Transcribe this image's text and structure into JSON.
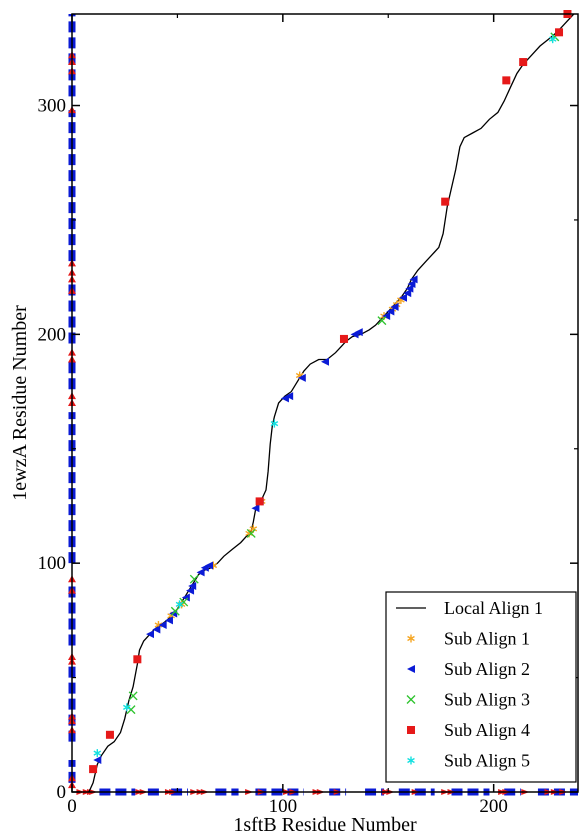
{
  "chart_data": {
    "type": "scatter",
    "title": "",
    "xlabel": "1sftB Residue Number",
    "ylabel": "1ewzA Residue Number",
    "xlim": [
      0,
      240
    ],
    "ylim": [
      0,
      340
    ],
    "x_ticks": [
      0,
      100,
      200
    ],
    "y_ticks": [
      0,
      100,
      200,
      300
    ],
    "x_tick_labels": [
      "0",
      "100",
      "200"
    ],
    "y_tick_labels": [
      "0",
      "100",
      "200",
      "300"
    ],
    "grid": false,
    "legend_position": "bottom-right",
    "series": [
      {
        "name": "Local Align 1",
        "kind": "line",
        "color": "#000000",
        "points": [
          [
            8,
            0
          ],
          [
            10,
            4
          ],
          [
            12,
            12
          ],
          [
            14,
            16
          ],
          [
            17,
            20
          ],
          [
            20,
            22
          ],
          [
            23,
            26
          ],
          [
            25,
            32
          ],
          [
            27,
            40
          ],
          [
            29,
            46
          ],
          [
            31,
            56
          ],
          [
            32,
            62
          ],
          [
            34,
            66
          ],
          [
            36,
            68
          ],
          [
            39,
            71
          ],
          [
            42,
            73
          ],
          [
            45,
            75
          ],
          [
            48,
            78
          ],
          [
            50,
            80
          ],
          [
            52,
            83
          ],
          [
            54,
            86
          ],
          [
            56,
            89
          ],
          [
            58,
            92
          ],
          [
            60,
            95
          ],
          [
            63,
            97
          ],
          [
            66,
            98
          ],
          [
            69,
            100
          ],
          [
            72,
            103
          ],
          [
            76,
            106
          ],
          [
            80,
            109
          ],
          [
            83,
            112
          ],
          [
            85,
            114
          ],
          [
            86,
            118
          ],
          [
            87,
            123
          ],
          [
            88,
            126
          ],
          [
            90,
            128
          ],
          [
            92,
            132
          ],
          [
            93,
            140
          ],
          [
            94,
            152
          ],
          [
            95,
            160
          ],
          [
            96,
            164
          ],
          [
            98,
            170
          ],
          [
            101,
            173
          ],
          [
            104,
            175
          ],
          [
            106,
            178
          ],
          [
            108,
            181
          ],
          [
            110,
            184
          ],
          [
            113,
            187
          ],
          [
            117,
            189
          ],
          [
            121,
            189
          ],
          [
            125,
            192
          ],
          [
            128,
            195
          ],
          [
            130,
            197
          ],
          [
            133,
            199
          ],
          [
            137,
            200
          ],
          [
            141,
            202
          ],
          [
            144,
            204
          ],
          [
            147,
            207
          ],
          [
            150,
            210
          ],
          [
            153,
            213
          ],
          [
            156,
            216
          ],
          [
            159,
            220
          ],
          [
            161,
            224
          ],
          [
            164,
            228
          ],
          [
            168,
            232
          ],
          [
            172,
            236
          ],
          [
            174,
            238
          ],
          [
            176,
            244
          ],
          [
            178,
            256
          ],
          [
            180,
            264
          ],
          [
            182,
            272
          ],
          [
            184,
            282
          ],
          [
            186,
            286
          ],
          [
            190,
            288
          ],
          [
            194,
            290
          ],
          [
            198,
            294
          ],
          [
            202,
            297
          ],
          [
            205,
            302
          ],
          [
            208,
            308
          ],
          [
            211,
            314
          ],
          [
            214,
            318
          ],
          [
            218,
            322
          ],
          [
            222,
            326
          ],
          [
            226,
            329
          ],
          [
            230,
            332
          ],
          [
            234,
            336
          ],
          [
            238,
            340
          ]
        ]
      },
      {
        "name": "Sub Align 1",
        "kind": "scatter",
        "marker": "asterisk",
        "color": "#f5a623",
        "points": [
          [
            41,
            73
          ],
          [
            47,
            77
          ],
          [
            52,
            82
          ],
          [
            67,
            99
          ],
          [
            84,
            113
          ],
          [
            86,
            115
          ],
          [
            90,
            127
          ],
          [
            108,
            182
          ],
          [
            148,
            208
          ],
          [
            152,
            211
          ],
          [
            154,
            213
          ],
          [
            156,
            215
          ]
        ]
      },
      {
        "name": "Sub Align 2",
        "kind": "scatter",
        "marker": "triangle-left",
        "color": "#0b1bd6",
        "points": [
          [
            12,
            14
          ],
          [
            37,
            69
          ],
          [
            40,
            71
          ],
          [
            43,
            73
          ],
          [
            46,
            75
          ],
          [
            48,
            78
          ],
          [
            54,
            85
          ],
          [
            56,
            88
          ],
          [
            57,
            90
          ],
          [
            61,
            96
          ],
          [
            63,
            98
          ],
          [
            65,
            99
          ],
          [
            87,
            124
          ],
          [
            89,
            127
          ],
          [
            101,
            172
          ],
          [
            103,
            173
          ],
          [
            109,
            181
          ],
          [
            120,
            188
          ],
          [
            134,
            200
          ],
          [
            136,
            201
          ],
          [
            149,
            208
          ],
          [
            151,
            210
          ],
          [
            153,
            212
          ],
          [
            157,
            216
          ],
          [
            159,
            218
          ],
          [
            160,
            220
          ],
          [
            161,
            222
          ],
          [
            162,
            224
          ]
        ]
      },
      {
        "name": "Sub Align 3",
        "kind": "scatter",
        "marker": "x",
        "color": "#2ec32e",
        "points": [
          [
            28,
            36
          ],
          [
            29,
            42
          ],
          [
            49,
            79
          ],
          [
            53,
            83
          ],
          [
            58,
            93
          ],
          [
            85,
            113
          ],
          [
            147,
            206
          ],
          [
            229,
            330
          ]
        ]
      },
      {
        "name": "Sub Align 4",
        "kind": "scatter",
        "marker": "square",
        "color": "#e61919",
        "points": [
          [
            10,
            10
          ],
          [
            18,
            25
          ],
          [
            31,
            58
          ],
          [
            89,
            127
          ],
          [
            129,
            198
          ],
          [
            177,
            258
          ],
          [
            206,
            311
          ],
          [
            214,
            319
          ],
          [
            231,
            332
          ],
          [
            235,
            340
          ]
        ]
      },
      {
        "name": "Sub Align 5",
        "kind": "scatter",
        "marker": "asterisk",
        "color": "#14e0e0",
        "points": [
          [
            12,
            17
          ],
          [
            26,
            37
          ],
          [
            51,
            82
          ],
          [
            96,
            161
          ],
          [
            228,
            329
          ]
        ]
      }
    ],
    "marginal_marks": {
      "y_axis_blue_ranges": [
        [
          4,
          14
        ],
        [
          22,
          56
        ],
        [
          64,
          92
        ],
        [
          100,
          166
        ],
        [
          176,
          188
        ],
        [
          196,
          222
        ],
        [
          232,
          298
        ],
        [
          304,
          340
        ]
      ],
      "y_axis_red_values": [
        3,
        6,
        27,
        31,
        33,
        57,
        59,
        88,
        93,
        170,
        173,
        189,
        192,
        219,
        224,
        227,
        231,
        298,
        315,
        319,
        322
      ],
      "x_axis_blue_ranges": [
        [
          13,
          30
        ],
        [
          36,
          42
        ],
        [
          47,
          55
        ],
        [
          68,
          79
        ],
        [
          87,
          110
        ],
        [
          122,
          130
        ],
        [
          139,
          148
        ],
        [
          155,
          172
        ],
        [
          180,
          198
        ],
        [
          205,
          213
        ],
        [
          221,
          240
        ]
      ],
      "x_axis_red_values": [
        4,
        7,
        9,
        10,
        32,
        34,
        46,
        48,
        58,
        61,
        63,
        84,
        90,
        102,
        105,
        116,
        118,
        126,
        149,
        151,
        163,
        177,
        180,
        204,
        206,
        215,
        226,
        229,
        233
      ]
    }
  }
}
